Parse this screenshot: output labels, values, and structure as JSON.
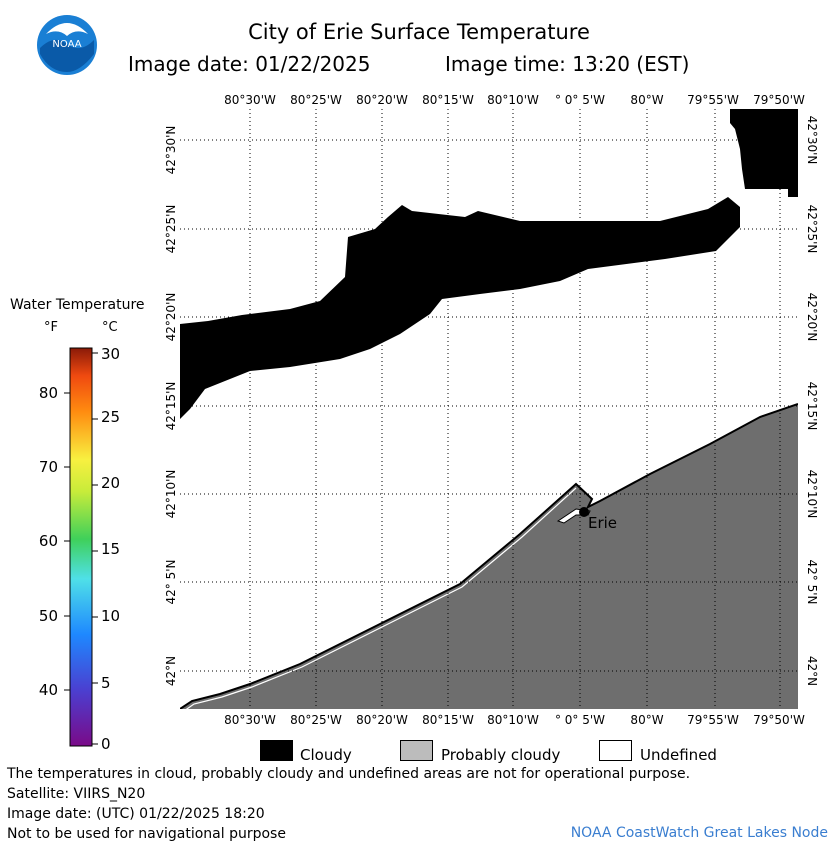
{
  "header": {
    "title": "City of Erie Surface Temperature",
    "image_date": "Image date: 01/22/2025",
    "image_time": "Image time: 13:20 (EST)",
    "logo_text": "NOAA"
  },
  "map": {
    "lon_labels": [
      "80°30'W",
      "80°25'W",
      "80°20'W",
      "80°15'W",
      "80°10'W",
      "° 0° 5'W",
      "80°W",
      "79°55'W",
      "79°50'W"
    ],
    "lat_labels": [
      "42°30'N",
      "42°25'N",
      "42°20'N",
      "42°15'N",
      "42°10'N",
      "42° 5'N",
      "42°N"
    ],
    "city_label": "Erie",
    "colors": {
      "cloudy": "#000000",
      "probably_cloudy": "#6e6e6e",
      "undefined": "#ffffff"
    }
  },
  "scale": {
    "title": "Water Temperature",
    "unit_f": "°F",
    "unit_c": "°C",
    "f_ticks": [
      "80",
      "70",
      "60",
      "50",
      "40"
    ],
    "c_ticks": [
      "30",
      "25",
      "20",
      "15",
      "10",
      "5",
      "0"
    ]
  },
  "legend": {
    "cloudy": "Cloudy",
    "probably_cloudy": "Probably cloudy",
    "undefined": "Undefined"
  },
  "footer": {
    "line1": "The temperatures in cloud, probably cloudy and undefined areas are not for operational purpose.",
    "line2": "Satellite: VIIRS_N20",
    "line3": "Image date: (UTC) 01/22/2025  18:20",
    "line4": "Not to be used for navigational purpose",
    "credit": "NOAA CoastWatch Great Lakes Node"
  }
}
